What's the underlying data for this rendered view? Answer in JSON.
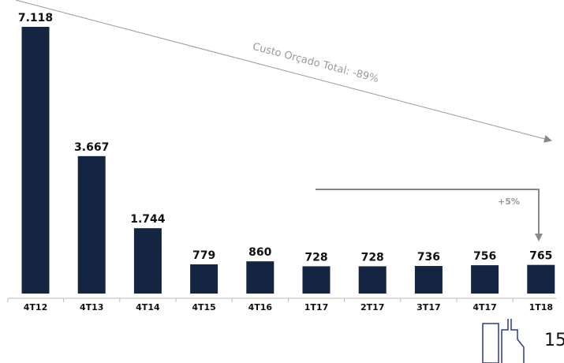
{
  "chart_data": {
    "type": "bar",
    "categories": [
      "4T12",
      "4T13",
      "4T14",
      "4T15",
      "4T16",
      "1T17",
      "2T17",
      "3T17",
      "4T17",
      "1T18"
    ],
    "values": [
      7118,
      3667,
      1744,
      779,
      860,
      728,
      728,
      736,
      756,
      765
    ],
    "value_labels": [
      "7.118",
      "3.667",
      "1.744",
      "779",
      "860",
      "728",
      "728",
      "736",
      "756",
      "765"
    ],
    "color": "#132540",
    "annotations": [
      "Custo Orçado Total: -89%",
      "+5%"
    ],
    "page_number": "15"
  }
}
